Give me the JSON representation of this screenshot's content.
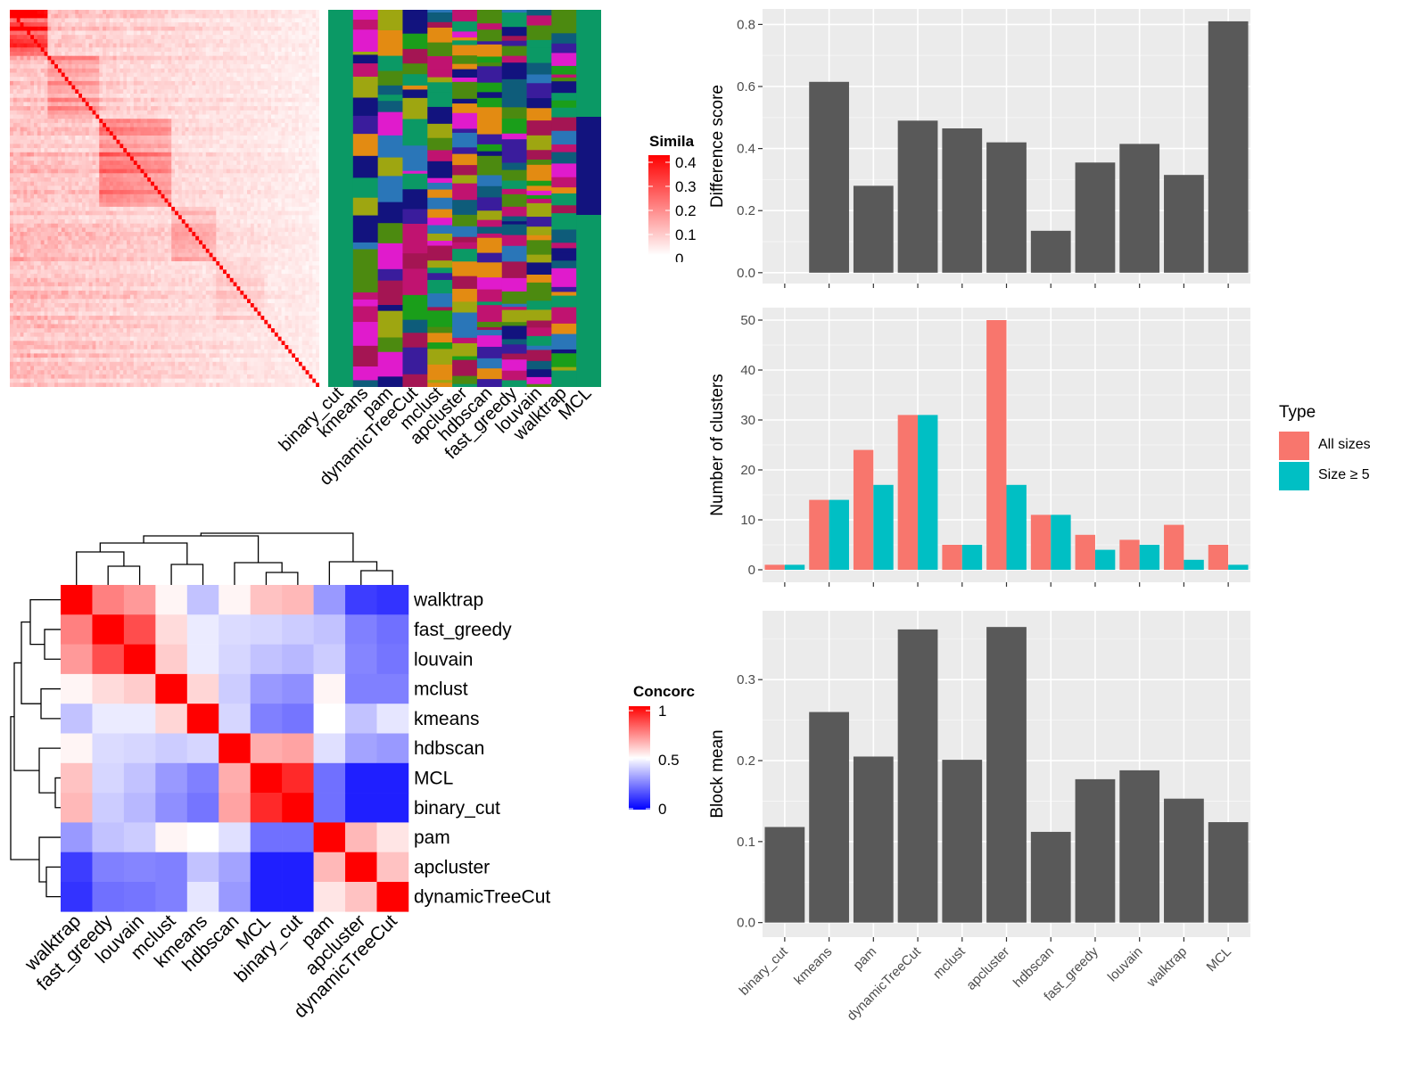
{
  "chart_data": [
    {
      "type": "heatmap",
      "name": "similarity-heatmap",
      "legend": {
        "title": "Simila",
        "ticks": [
          "0.4",
          "0.3",
          "0.2",
          "0.1",
          "0"
        ],
        "range": [
          0,
          0.4
        ],
        "colors": {
          "low": "#ffffff",
          "high": "#ff0000"
        }
      },
      "blocks": [
        {
          "start": 0,
          "end": 0.12,
          "level": 0.32
        },
        {
          "start": 0.12,
          "end": 0.28,
          "level": 0.18
        },
        {
          "start": 0.28,
          "end": 0.52,
          "level": 0.26
        },
        {
          "start": 0.52,
          "end": 0.66,
          "level": 0.2
        },
        {
          "start": 0.66,
          "end": 0.82,
          "level": 0.17
        },
        {
          "start": 0.82,
          "end": 1,
          "level": 0.1
        }
      ]
    },
    {
      "type": "heatmap",
      "name": "cluster-assignment-heatmap",
      "categories": [
        "binary_cut",
        "kmeans",
        "pam",
        "dynamicTreeCut",
        "mclust",
        "apcluster",
        "hdbscan",
        "fast_greedy",
        "louvain",
        "walktrap",
        "MCL"
      ],
      "palette": [
        "#0b9965",
        "#12137e",
        "#e01bcc",
        "#4c8a10",
        "#9ea611",
        "#a41553",
        "#0e5c7a",
        "#e38b12",
        "#1a9e1a",
        "#3a1c9c",
        "#c01370",
        "#2a76b8"
      ]
    },
    {
      "type": "heatmap",
      "name": "concordance-heatmap",
      "rows": [
        "walktrap",
        "fast_greedy",
        "louvain",
        "mclust",
        "kmeans",
        "hdbscan",
        "MCL",
        "binary_cut",
        "pam",
        "apcluster",
        "dynamicTreeCut"
      ],
      "columns": [
        "walktrap",
        "fast_greedy",
        "louvain",
        "mclust",
        "kmeans",
        "hdbscan",
        "MCL",
        "binary_cut",
        "pam",
        "apcluster",
        "dynamicTreeCut"
      ],
      "values": [
        [
          1.0,
          0.75,
          0.7,
          0.52,
          0.38,
          0.52,
          0.62,
          0.64,
          0.3,
          0.12,
          0.1
        ],
        [
          0.75,
          1.0,
          0.85,
          0.57,
          0.46,
          0.43,
          0.42,
          0.4,
          0.38,
          0.25,
          0.22
        ],
        [
          0.7,
          0.85,
          1.0,
          0.6,
          0.46,
          0.42,
          0.38,
          0.36,
          0.4,
          0.26,
          0.23
        ],
        [
          0.52,
          0.57,
          0.6,
          1.0,
          0.58,
          0.4,
          0.3,
          0.28,
          0.52,
          0.25,
          0.25
        ],
        [
          0.38,
          0.46,
          0.46,
          0.58,
          1.0,
          0.42,
          0.25,
          0.23,
          0.5,
          0.38,
          0.45
        ],
        [
          0.52,
          0.43,
          0.42,
          0.4,
          0.42,
          1.0,
          0.66,
          0.68,
          0.44,
          0.32,
          0.3
        ],
        [
          0.62,
          0.42,
          0.38,
          0.3,
          0.25,
          0.66,
          1.0,
          0.92,
          0.22,
          0.06,
          0.06
        ],
        [
          0.64,
          0.4,
          0.36,
          0.28,
          0.23,
          0.68,
          0.92,
          1.0,
          0.22,
          0.06,
          0.06
        ],
        [
          0.3,
          0.38,
          0.4,
          0.52,
          0.5,
          0.44,
          0.22,
          0.22,
          1.0,
          0.64,
          0.55
        ],
        [
          0.12,
          0.25,
          0.26,
          0.25,
          0.38,
          0.32,
          0.06,
          0.06,
          0.64,
          1.0,
          0.62
        ],
        [
          0.1,
          0.22,
          0.23,
          0.25,
          0.45,
          0.3,
          0.06,
          0.06,
          0.55,
          0.62,
          1.0
        ]
      ],
      "legend": {
        "title": "Concorc",
        "ticks": [
          "1",
          "0.5",
          "0"
        ],
        "range": [
          0,
          1
        ],
        "colors": {
          "low": "#0000ff",
          "mid": "#ffffff",
          "high": "#ff0000"
        }
      }
    },
    {
      "type": "bar",
      "name": "difference-score",
      "categories": [
        "binary_cut",
        "kmeans",
        "pam",
        "dynamicTreeCut",
        "mclust",
        "apcluster",
        "hdbscan",
        "fast_greedy",
        "louvain",
        "walktrap",
        "MCL"
      ],
      "values": [
        0,
        0.615,
        0.28,
        0.49,
        0.465,
        0.42,
        0.135,
        0.355,
        0.415,
        0.315,
        0.81
      ],
      "ylabel": "Difference score",
      "ylim": [
        -0.035,
        0.85
      ],
      "yticks": [
        0,
        0.2,
        0.4,
        0.6,
        0.8
      ],
      "ytick_labels": [
        "0.0",
        "0.2",
        "0.4",
        "0.6",
        "0.8"
      ]
    },
    {
      "type": "bar",
      "name": "number-of-clusters",
      "categories": [
        "binary_cut",
        "kmeans",
        "pam",
        "dynamicTreeCut",
        "mclust",
        "apcluster",
        "hdbscan",
        "fast_greedy",
        "louvain",
        "walktrap",
        "MCL"
      ],
      "series": [
        {
          "name": "All sizes",
          "color": "#f8766d",
          "values": [
            1,
            14,
            24,
            31,
            5,
            50,
            11,
            7,
            6,
            9,
            5
          ]
        },
        {
          "name": "Size ≥ 5",
          "color": "#00bfc4",
          "values": [
            1,
            14,
            17,
            31,
            5,
            17,
            11,
            4,
            5,
            2,
            1
          ]
        }
      ],
      "ylabel": "Number of clusters",
      "ylim": [
        -2.5,
        52.5
      ],
      "yticks": [
        0,
        10,
        20,
        30,
        40,
        50
      ],
      "ytick_labels": [
        "0",
        "10",
        "20",
        "30",
        "40",
        "50"
      ],
      "legend_title": "Type",
      "legend_position": "right"
    },
    {
      "type": "bar",
      "name": "block-mean",
      "categories": [
        "binary_cut",
        "kmeans",
        "pam",
        "dynamicTreeCut",
        "mclust",
        "apcluster",
        "hdbscan",
        "fast_greedy",
        "louvain",
        "walktrap",
        "MCL"
      ],
      "values": [
        0.118,
        0.26,
        0.205,
        0.362,
        0.201,
        0.365,
        0.112,
        0.177,
        0.188,
        0.153,
        0.124
      ],
      "ylabel": "Block mean",
      "ylim": [
        -0.018,
        0.385
      ],
      "yticks": [
        0,
        0.1,
        0.2,
        0.3
      ],
      "ytick_labels": [
        "0.0",
        "0.1",
        "0.2",
        "0.3"
      ]
    }
  ]
}
